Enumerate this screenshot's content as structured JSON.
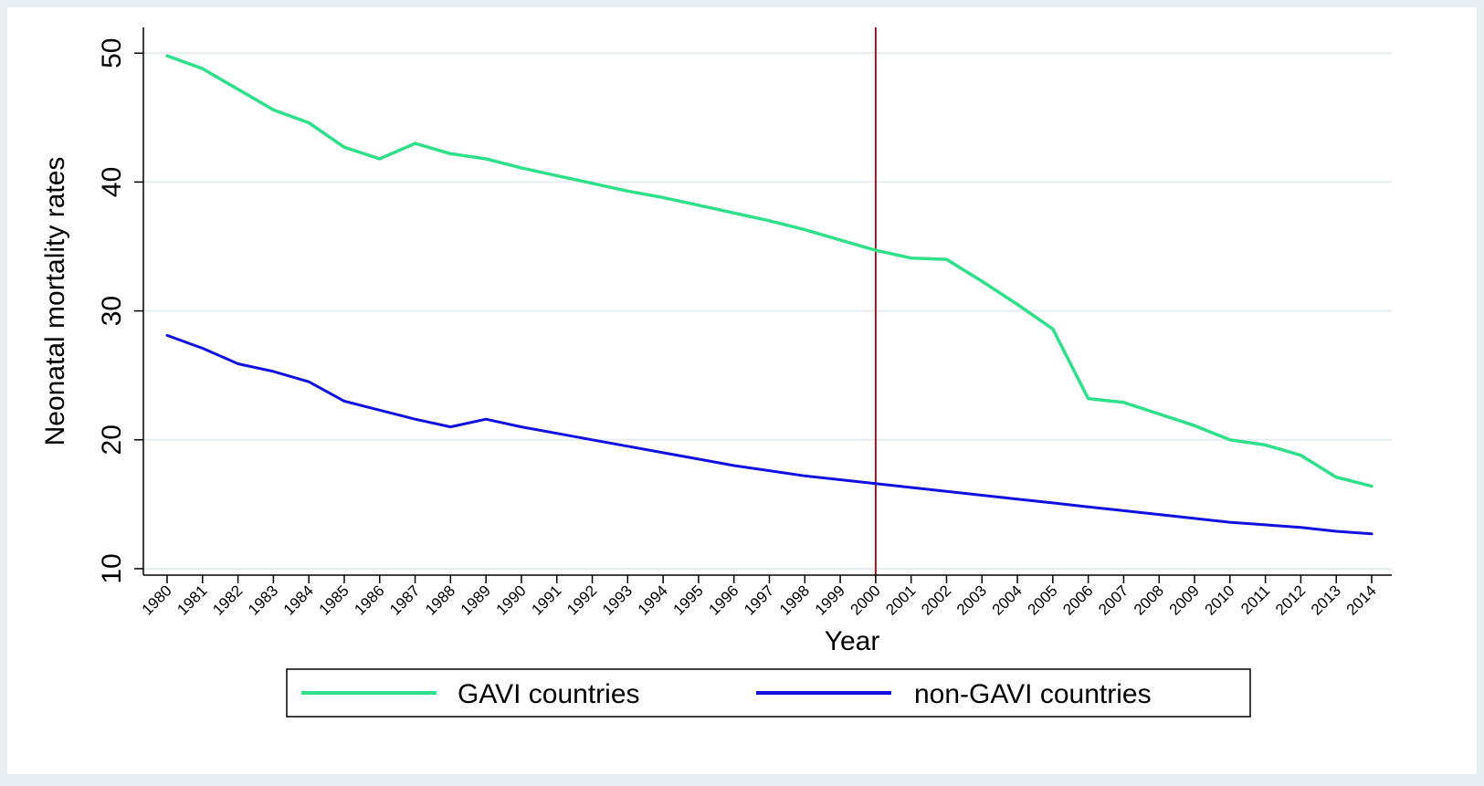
{
  "chart_data": {
    "type": "line",
    "title": "",
    "xlabel": "Year",
    "ylabel": "Neonatal mortality rates",
    "x": [
      1980,
      1981,
      1982,
      1983,
      1984,
      1985,
      1986,
      1987,
      1988,
      1989,
      1990,
      1991,
      1992,
      1993,
      1994,
      1995,
      1996,
      1997,
      1998,
      1999,
      2000,
      2001,
      2002,
      2003,
      2004,
      2005,
      2006,
      2007,
      2008,
      2009,
      2010,
      2011,
      2012,
      2013,
      2014
    ],
    "x_tick_labels": [
      "1980",
      "1981",
      "1982",
      "1983",
      "1984",
      "1985",
      "1986",
      "1987",
      "1988",
      "1989",
      "1990",
      "1991",
      "1992",
      "1993",
      "1994",
      "1995",
      "1996",
      "1997",
      "1998",
      "1999",
      "2000",
      "2001",
      "2002",
      "2003",
      "2004",
      "2005",
      "2006",
      "2007",
      "2008",
      "2009",
      "2010",
      "2011",
      "2012",
      "2013",
      "2014"
    ],
    "y_ticks": [
      10,
      20,
      30,
      40,
      50
    ],
    "y_tick_labels": [
      "10",
      "20",
      "30",
      "40",
      "50"
    ],
    "ylim": [
      9.5,
      52
    ],
    "grid": true,
    "legend_position": "bottom",
    "reference_line": {
      "x": 2000,
      "color": "#8b1a2a"
    },
    "series": [
      {
        "name": "GAVI countries",
        "color": "#2fe08a",
        "values": [
          49.8,
          48.8,
          47.2,
          45.6,
          44.6,
          42.7,
          41.8,
          43.0,
          42.2,
          41.8,
          41.1,
          40.5,
          39.9,
          39.3,
          38.8,
          38.2,
          37.6,
          37.0,
          36.3,
          35.5,
          34.7,
          34.1,
          34.0,
          32.3,
          30.5,
          28.6,
          23.2,
          22.9,
          22.0,
          21.1,
          20.0,
          19.6,
          18.8,
          17.1,
          16.4
        ]
      },
      {
        "name": "non-GAVI countries",
        "color": "#1010e0",
        "values": [
          28.1,
          27.1,
          25.9,
          25.3,
          24.5,
          23.0,
          22.3,
          21.6,
          21.0,
          21.6,
          21.0,
          20.5,
          20.0,
          19.5,
          19.0,
          18.5,
          18.0,
          17.6,
          17.2,
          16.9,
          16.6,
          16.3,
          16.0,
          15.7,
          15.4,
          15.1,
          14.8,
          14.5,
          14.2,
          13.9,
          13.6,
          13.4,
          13.2,
          12.9,
          12.7
        ]
      }
    ]
  }
}
